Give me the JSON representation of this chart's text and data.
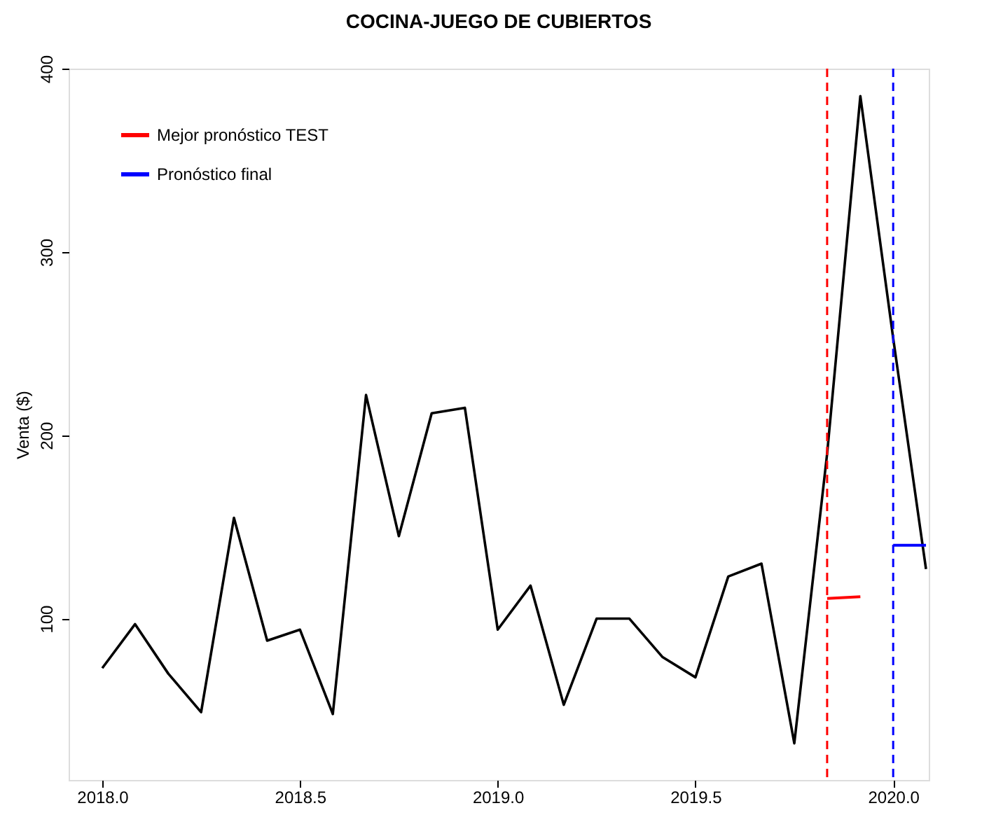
{
  "chart_data": {
    "type": "line",
    "title": "COCINA-JUEGO DE CUBIERTOS",
    "ylabel": "Venta ($)",
    "series": [
      {
        "color": "#000000",
        "x": [
          2018.0,
          2018.083,
          2018.167,
          2018.25,
          2018.333,
          2018.417,
          2018.5,
          2018.583,
          2018.667,
          2018.75,
          2018.833,
          2018.917,
          2019.0,
          2019.083,
          2019.167,
          2019.25,
          2019.333,
          2019.417,
          2019.5,
          2019.583,
          2019.667,
          2019.75,
          2019.833,
          2019.917,
          2020.0,
          2020.083
        ],
        "values": [
          73,
          97,
          70,
          49,
          155,
          88,
          94,
          48,
          222,
          145,
          212,
          215,
          94,
          118,
          53,
          100,
          100,
          79,
          68,
          123,
          130,
          32,
          190,
          385,
          253,
          127
        ]
      },
      {
        "name": "Mejor pronóstico TEST",
        "color": "#ff0000",
        "x": [
          2019.833,
          2019.917
        ],
        "values": [
          111,
          112
        ]
      },
      {
        "name": "Pronóstico final",
        "color": "#0000ff",
        "x": [
          2020.0,
          2020.083
        ],
        "values": [
          140,
          140
        ]
      }
    ],
    "xlim": [
      2017.915,
      2020.09
    ],
    "ylim": [
      12,
      400
    ],
    "xticks": [
      {
        "value": 2018.0,
        "label": "2018.0"
      },
      {
        "value": 2018.5,
        "label": "2018.5"
      },
      {
        "value": 2019.0,
        "label": "2019.0"
      },
      {
        "value": 2019.5,
        "label": "2019.5"
      },
      {
        "value": 2020.0,
        "label": "2020.0"
      }
    ],
    "yticks": [
      100,
      200,
      300,
      400
    ],
    "ref_lines": [
      {
        "axis": "x",
        "value": 2019.833,
        "color": "#ff0000",
        "line_style": "dashed"
      },
      {
        "axis": "x",
        "value": 2020.0,
        "color": "#0000ff",
        "line_style": "dashed"
      }
    ],
    "grid": false,
    "legend": "top left",
    "line_style": "solid",
    "marker": "none"
  }
}
